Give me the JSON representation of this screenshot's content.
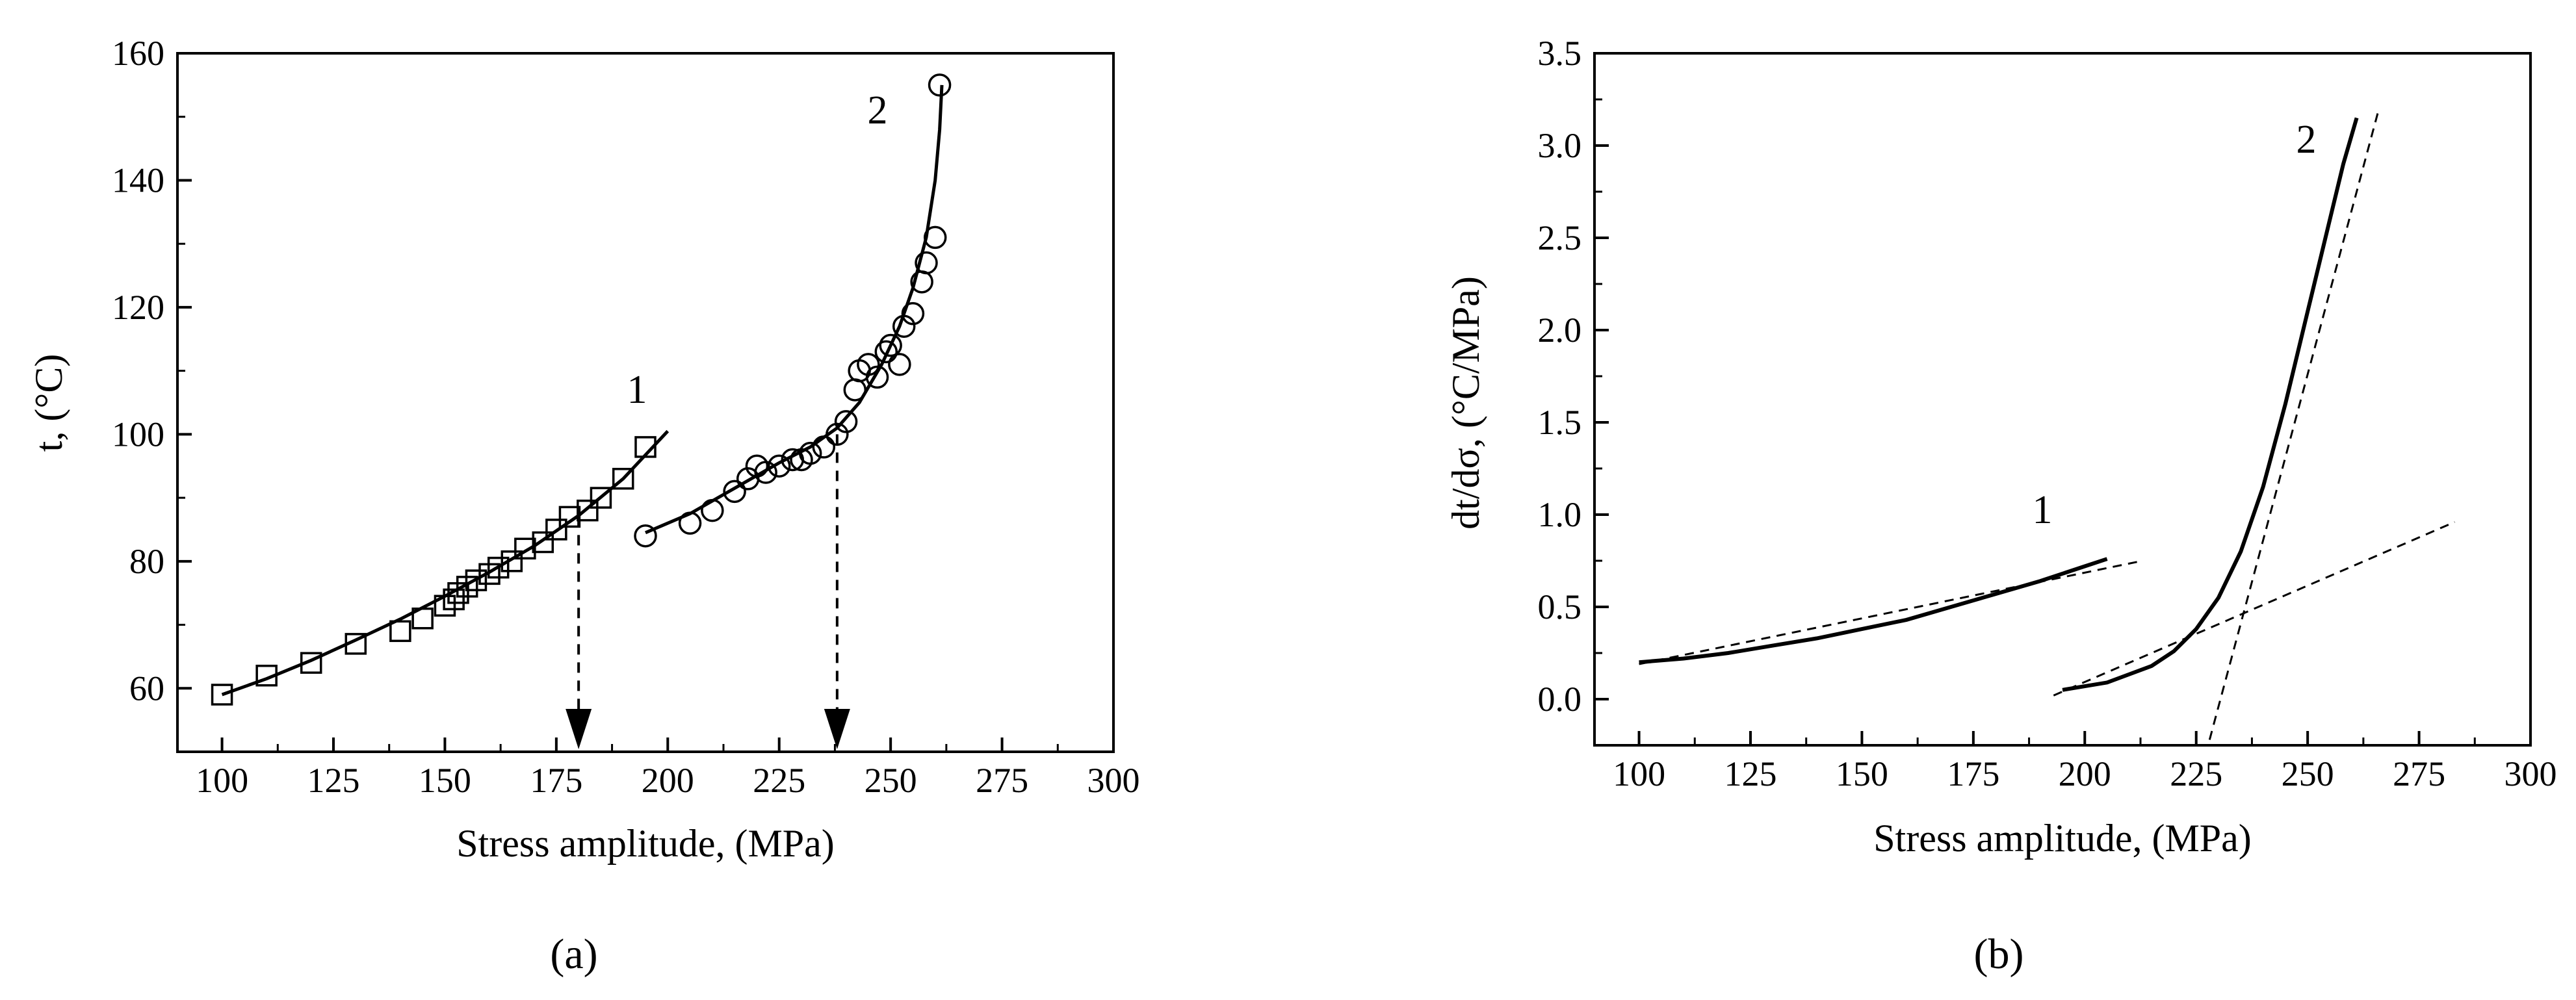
{
  "chart_data": [
    {
      "type": "scatter",
      "panel_label": "(a)",
      "xlabel": "Stress amplitude, (MPa)",
      "ylabel": "t, (°C)",
      "xlim": [
        90,
        300
      ],
      "ylim": [
        50,
        160
      ],
      "xticks": [
        100,
        125,
        150,
        175,
        200,
        225,
        250,
        275,
        300
      ],
      "yticks": [
        60,
        80,
        100,
        120,
        140,
        160
      ],
      "grid": false,
      "series": [
        {
          "name": "1",
          "marker": "square",
          "x": [
            100,
            110,
            120,
            130,
            140,
            145,
            150,
            152,
            153,
            155,
            157,
            160,
            162,
            165,
            168,
            172,
            175,
            178,
            182,
            185,
            190,
            195
          ],
          "y": [
            59,
            62,
            64,
            67,
            69,
            71,
            73,
            74,
            75,
            76,
            77,
            78,
            79,
            80,
            82,
            83,
            85,
            87,
            88,
            90,
            93,
            98
          ],
          "fit": {
            "x": [
              100,
              110,
              120,
              130,
              140,
              150,
              160,
              170,
              180,
              190,
              200
            ],
            "y": [
              59,
              61.5,
              64.4,
              67.6,
              70.9,
              74.5,
              78.3,
              82.4,
              87.2,
              93,
              100.5
            ]
          }
        },
        {
          "name": "2",
          "marker": "circle",
          "x": [
            195,
            205,
            210,
            215,
            218,
            220,
            222,
            225,
            228,
            230,
            232,
            235,
            238,
            240,
            242,
            243,
            245,
            247,
            249,
            250,
            252,
            253,
            255,
            257,
            258,
            260,
            261
          ],
          "y": [
            84,
            86,
            88,
            91,
            93,
            95,
            94,
            95,
            96,
            96,
            97,
            98,
            100,
            102,
            107,
            110,
            111,
            109,
            113,
            114,
            111,
            117,
            119,
            124,
            127,
            131,
            155
          ],
          "fit": {
            "x": [
              195,
              205,
              215,
              225,
              232,
              238,
              243,
              248,
              252,
              255,
              258,
              260,
              261,
              261.5
            ],
            "y": [
              84.5,
              87.5,
              91.5,
              95.5,
              98,
              101,
              105,
              111,
              117,
              123,
              131,
              140,
              148,
              155
            ]
          }
        }
      ],
      "annotations": [
        {
          "type": "dashed-arrow",
          "x": 180,
          "from_y": 87,
          "to_y": 50
        },
        {
          "type": "dashed-arrow",
          "x": 238,
          "from_y": 100,
          "to_y": 50
        }
      ]
    },
    {
      "type": "line",
      "panel_label": "(b)",
      "xlabel": "Stress amplitude, (MPa)",
      "ylabel": "dt/dσ, (°C/MPa)",
      "xlim": [
        90,
        300
      ],
      "ylim": [
        -0.25,
        3.5
      ],
      "xticks": [
        100,
        125,
        150,
        175,
        200,
        225,
        250,
        275,
        300
      ],
      "yticks": [
        0.0,
        0.5,
        1.0,
        1.5,
        2.0,
        2.5,
        3.0,
        3.5
      ],
      "ytick_labels": [
        "0.0",
        "0.5",
        "1.0",
        "1.5",
        "2.0",
        "2.5",
        "3.0",
        "3.5"
      ],
      "grid": false,
      "series": [
        {
          "name": "1",
          "x": [
            100,
            110,
            120,
            130,
            140,
            150,
            160,
            170,
            180,
            190,
            200,
            205
          ],
          "y": [
            0.2,
            0.22,
            0.25,
            0.29,
            0.33,
            0.38,
            0.43,
            0.5,
            0.57,
            0.64,
            0.72,
            0.76
          ]
        },
        {
          "name": "2",
          "x": [
            195,
            205,
            215,
            220,
            225,
            230,
            235,
            240,
            245,
            250,
            255,
            258,
            261
          ],
          "y": [
            0.05,
            0.09,
            0.18,
            0.26,
            0.38,
            0.55,
            0.8,
            1.15,
            1.6,
            2.1,
            2.6,
            2.9,
            3.15
          ]
        }
      ],
      "reference_lines": [
        {
          "x": [
            100,
            213
          ],
          "y": [
            0.19,
            0.75
          ]
        },
        {
          "x": [
            193,
            283
          ],
          "y": [
            0.02,
            0.96
          ]
        },
        {
          "x": [
            228,
            266
          ],
          "y": [
            -0.22,
            3.2
          ]
        }
      ]
    }
  ]
}
